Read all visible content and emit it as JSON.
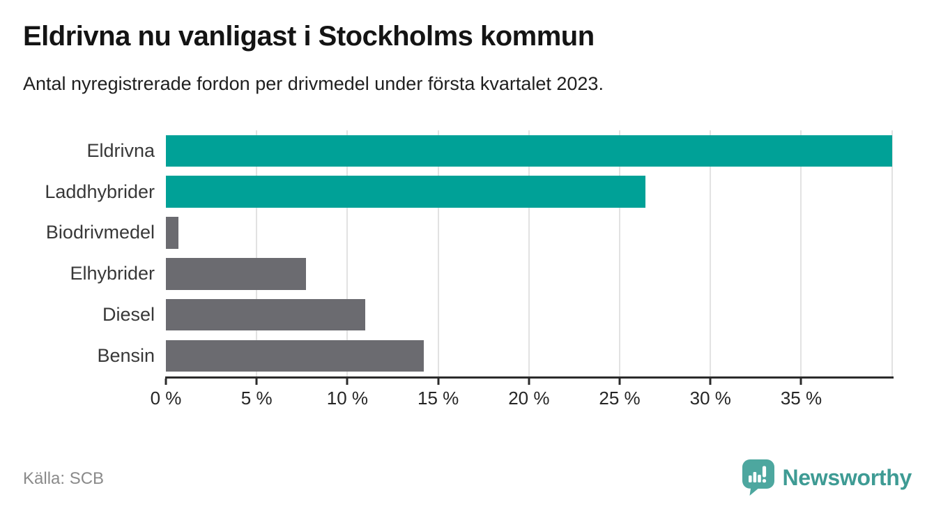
{
  "header": {
    "title": "Eldrivna nu vanligast i Stockholms kommun",
    "subtitle": "Antal nyregistrerade fordon per drivmedel under första kvartalet 2023."
  },
  "chart_data": {
    "type": "bar",
    "orientation": "horizontal",
    "title": "Eldrivna nu vanligast i Stockholms kommun",
    "subtitle": "Antal nyregistrerade fordon per drivmedel under första kvartalet 2023.",
    "categories": [
      "Eldrivna",
      "Laddhybrider",
      "Biodrivmedel",
      "Elhybrider",
      "Diesel",
      "Bensin"
    ],
    "values": [
      40.0,
      26.4,
      0.7,
      7.7,
      11.0,
      14.2
    ],
    "unit": "%",
    "xlabel": "",
    "ylabel": "",
    "xlim": [
      0,
      40.05
    ],
    "xtick_values": [
      0,
      5,
      10,
      15,
      20,
      25,
      30,
      35
    ],
    "xtick_labels": [
      "0 %",
      "5 %",
      "10 %",
      "15 %",
      "20 %",
      "25 %",
      "30 %",
      "35 %"
    ],
    "gridline_values": [
      5,
      10,
      15,
      20,
      25,
      30,
      35,
      40
    ],
    "bar_colors": [
      "#00a197",
      "#00a197",
      "#6b6b70",
      "#6b6b70",
      "#6b6b70",
      "#6b6b70"
    ],
    "highlight_color": "#00a197",
    "base_color": "#6b6b70",
    "grid": true,
    "legend": false,
    "source": "Källa: SCB"
  },
  "footer": {
    "source": "Källa: SCB",
    "brand_name": "Newsworthy",
    "brand_text_color": "#3e9b94",
    "badge_color": "#4da79f"
  }
}
